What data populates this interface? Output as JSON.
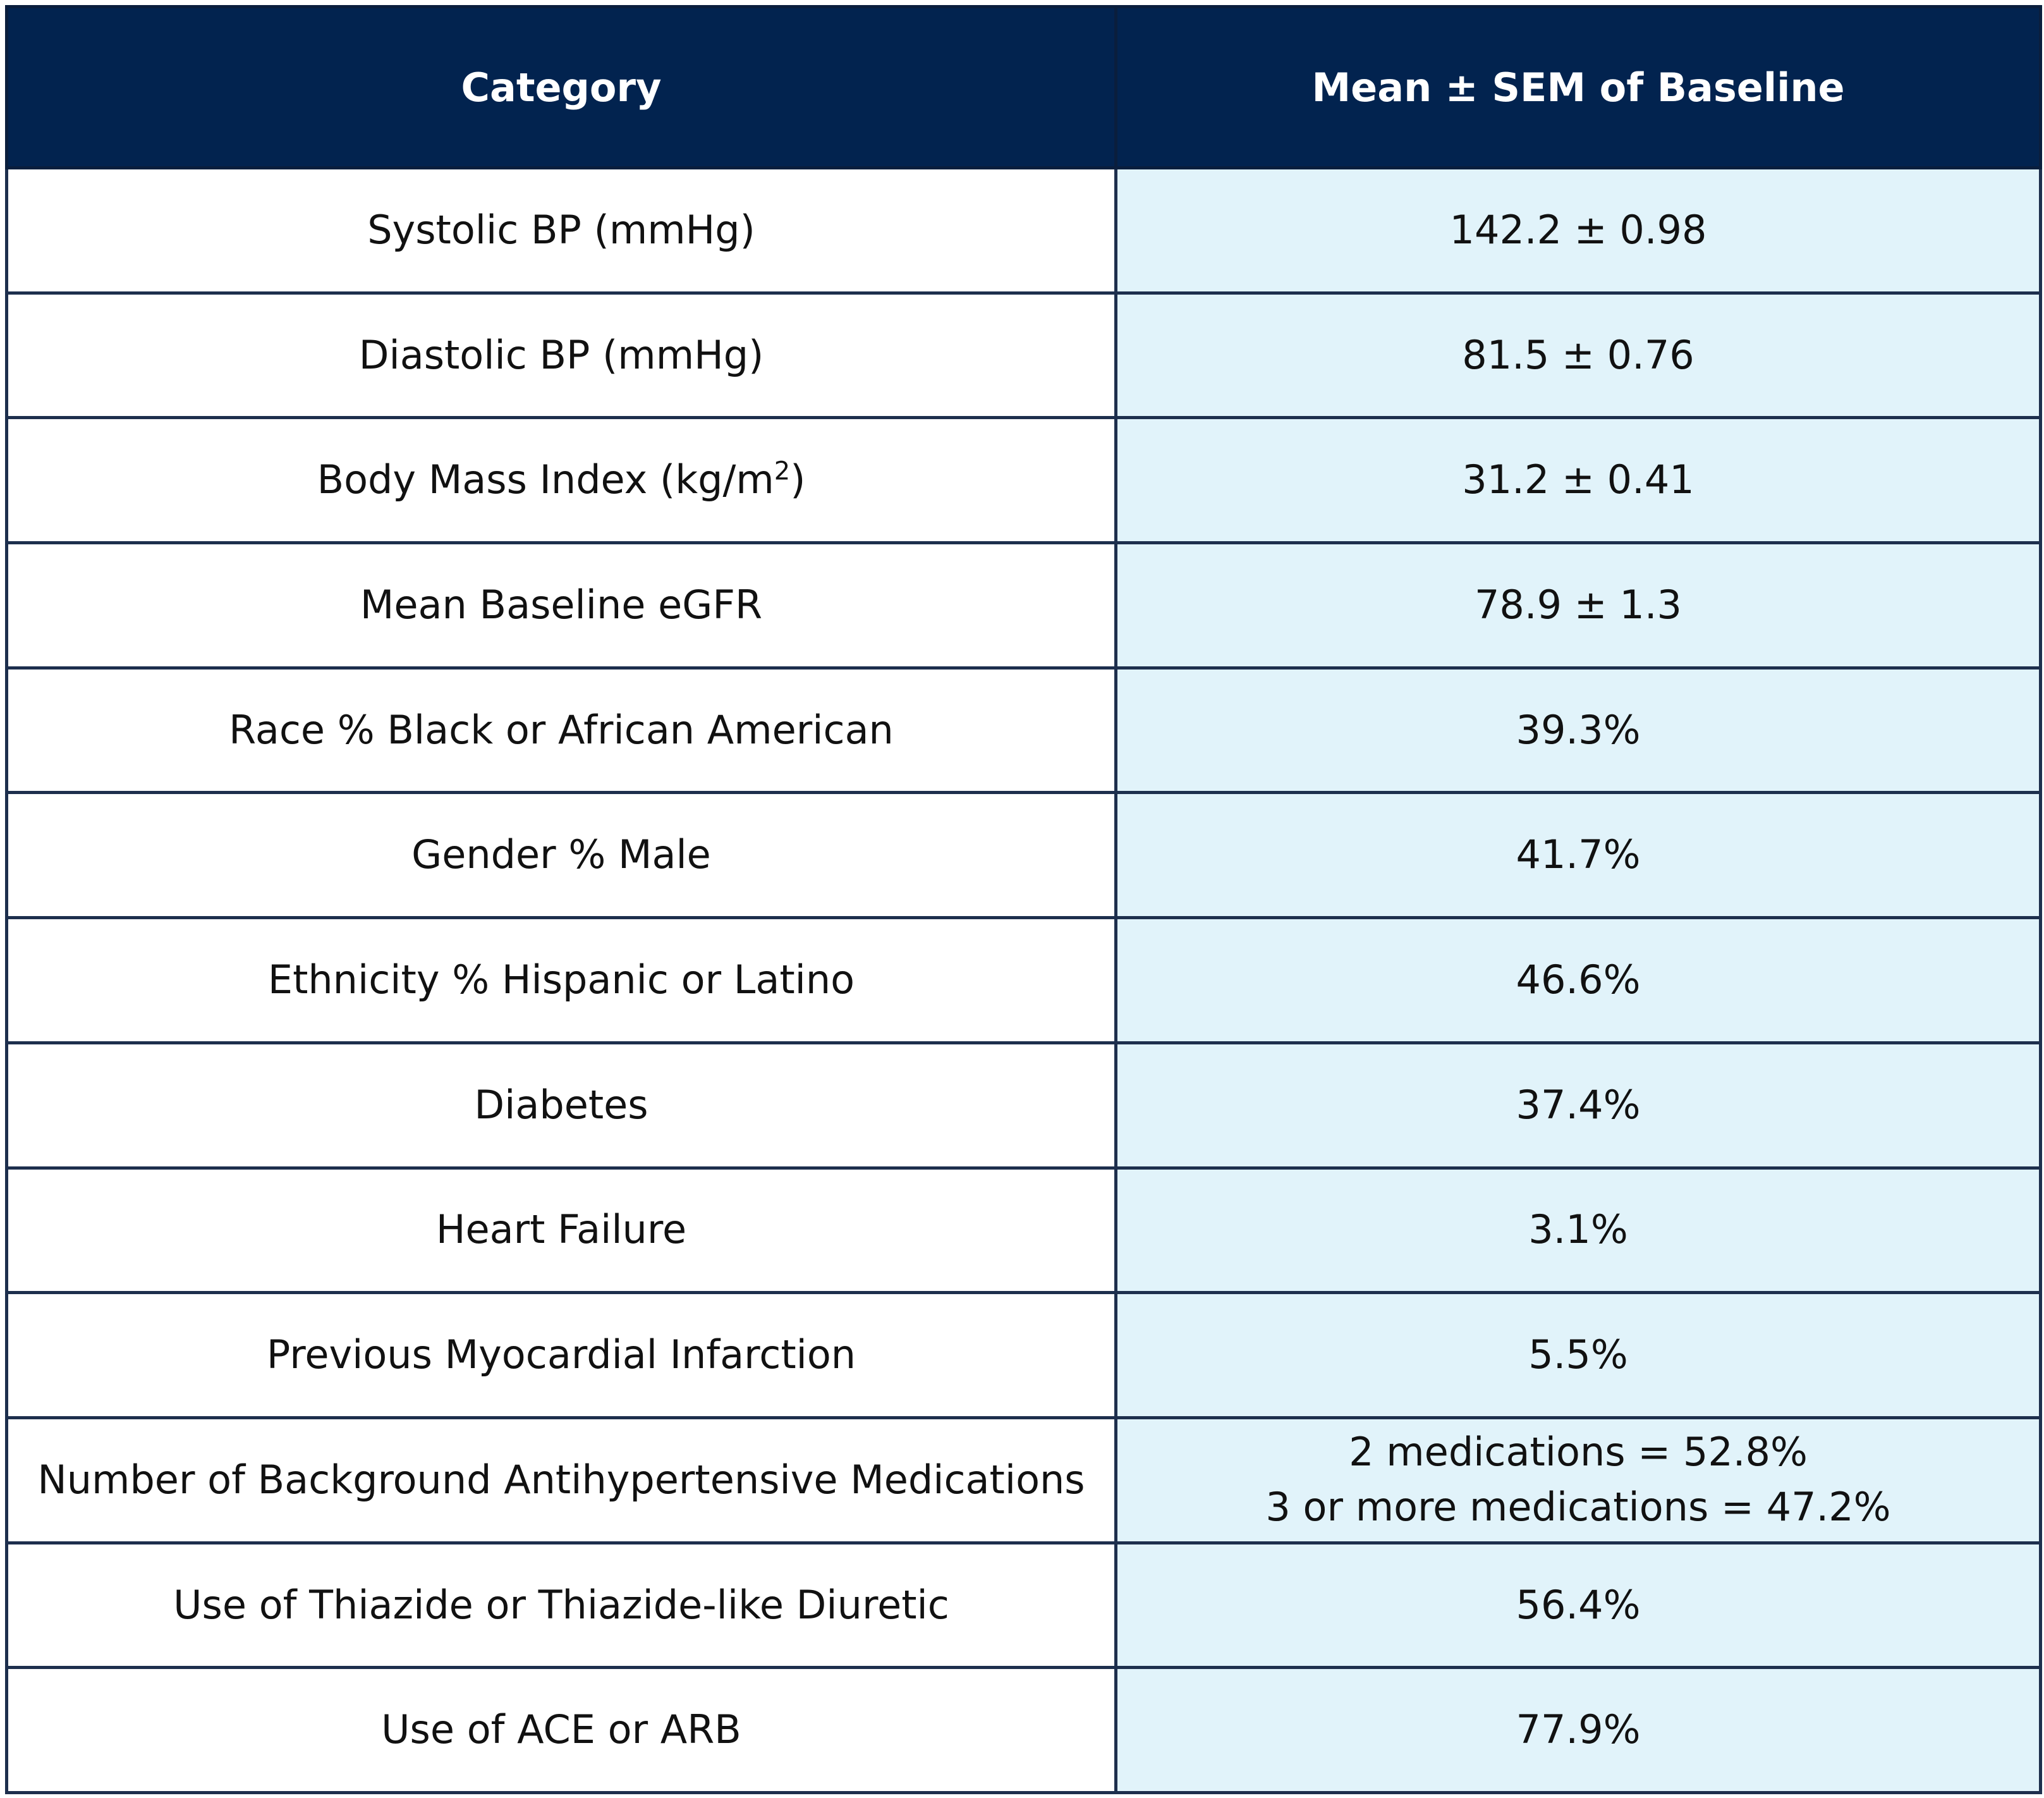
{
  "chart_data": {
    "type": "table",
    "columns": [
      "Category",
      "Mean ± SEM of Baseline"
    ],
    "rows": [
      {
        "category": "Systolic BP (mmHg)",
        "value": [
          "142.2 ± 0.98"
        ]
      },
      {
        "category": "Diastolic BP (mmHg)",
        "value": [
          "81.5 ± 0.76"
        ]
      },
      {
        "category": "Body Mass Index (kg/m",
        "category_sup": "2",
        "category_suffix": ")",
        "value": [
          "31.2 ± 0.41"
        ]
      },
      {
        "category": "Mean Baseline eGFR",
        "value": [
          "78.9 ±  1.3"
        ]
      },
      {
        "category": "Race % Black or African American",
        "value": [
          "39.3%"
        ]
      },
      {
        "category": "Gender % Male",
        "value": [
          "41.7%"
        ]
      },
      {
        "category": "Ethnicity % Hispanic or Latino",
        "value": [
          "46.6%"
        ]
      },
      {
        "category": "Diabetes",
        "value": [
          "37.4%"
        ]
      },
      {
        "category": "Heart Failure",
        "value": [
          "3.1%"
        ]
      },
      {
        "category": "Previous Myocardial Infarction",
        "value": [
          "5.5%"
        ]
      },
      {
        "category": "Number of Background Antihypertensive Medications",
        "value": [
          "2 medications = 52.8%",
          "3 or more medications = 47.2%"
        ]
      },
      {
        "category": "Use of Thiazide or Thiazide-like Diuretic",
        "value": [
          "56.4%"
        ]
      },
      {
        "category": "Use of ACE or ARB",
        "value": [
          "77.9%"
        ]
      }
    ],
    "colors": {
      "header_bg": "#02234f",
      "header_text": "#ffffff",
      "value_col_bg": "#e1f3fa",
      "category_col_bg": "#ffffff",
      "border": "#1d2f4d"
    }
  }
}
